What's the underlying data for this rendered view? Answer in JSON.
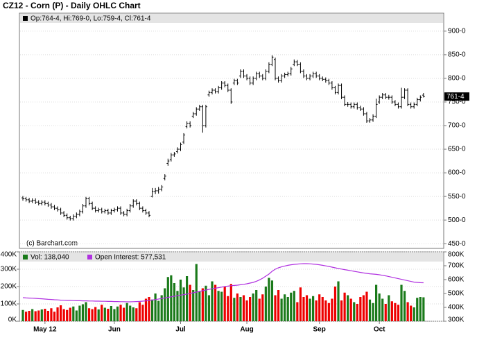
{
  "chart_data": [
    {
      "type": "ohlc",
      "title": "CZ12 - Corn (P) - Daily OHLC Chart",
      "ohlc_label": "Op:764-4, Hi:769-0, Lo:759-4, Cl:761-4",
      "copyright": "(c) Barchart.com",
      "last_label": "761-4",
      "color": "#000000",
      "grid": true,
      "ylim": [
        440,
        938
      ],
      "yticks": [
        {
          "value": 450,
          "label": "450-0"
        },
        {
          "value": 500,
          "label": "500-0"
        },
        {
          "value": 550,
          "label": "550-0"
        },
        {
          "value": 600,
          "label": "600-0"
        },
        {
          "value": 650,
          "label": "650-0"
        },
        {
          "value": 700,
          "label": "700-0"
        },
        {
          "value": 750,
          "label": "750-0"
        },
        {
          "value": 800,
          "label": "800-0"
        },
        {
          "value": 850,
          "label": "850-0"
        },
        {
          "value": 900,
          "label": "900-0"
        }
      ],
      "open": [
        547,
        545,
        543,
        540,
        542,
        538,
        535,
        538,
        535,
        532,
        528,
        525,
        522,
        515,
        510,
        505,
        503,
        508,
        512,
        518,
        530,
        545,
        535,
        525,
        520,
        522,
        518,
        520,
        515,
        520,
        522,
        525,
        515,
        512,
        520,
        530,
        540,
        535,
        525,
        520,
        515,
        550,
        560,
        562,
        565,
        588,
        620,
        628,
        638,
        645,
        650,
        665,
        698,
        705,
        720,
        725,
        735,
        740,
        700,
        765,
        770,
        775,
        772,
        780,
        790,
        785,
        775,
        790,
        795,
        805,
        815,
        805,
        800,
        790,
        800,
        810,
        805,
        800,
        815,
        830,
        840,
        800,
        795,
        805,
        808,
        810,
        830,
        835,
        830,
        815,
        805,
        800,
        805,
        810,
        805,
        800,
        798,
        795,
        790,
        780,
        770,
        785,
        760,
        745,
        745,
        740,
        745,
        738,
        735,
        725,
        710,
        712,
        720,
        750,
        760,
        765,
        760,
        760,
        750,
        745,
        740,
        760,
        775,
        745,
        740,
        745,
        755,
        764.5
      ],
      "high": [
        551,
        549,
        547,
        546,
        546,
        542,
        542,
        542,
        539,
        536,
        532,
        529,
        526,
        519,
        514,
        509,
        512,
        516,
        522,
        534,
        549,
        549,
        539,
        529,
        526,
        526,
        524,
        524,
        524,
        526,
        529,
        529,
        519,
        524,
        534,
        544,
        544,
        539,
        529,
        524,
        519,
        568,
        568,
        570,
        574,
        597,
        630,
        642,
        644,
        654,
        664,
        684,
        709,
        709,
        729,
        739,
        744,
        744,
        744,
        774,
        779,
        779,
        784,
        794,
        794,
        789,
        779,
        799,
        799,
        819,
        819,
        809,
        804,
        804,
        814,
        814,
        809,
        819,
        834,
        849,
        844,
        804,
        809,
        812,
        814,
        824,
        840,
        839,
        834,
        819,
        809,
        809,
        814,
        814,
        809,
        804,
        802,
        799,
        794,
        784,
        789,
        789,
        764,
        750,
        749,
        749,
        749,
        742,
        739,
        729,
        716,
        724,
        757,
        764,
        769,
        769,
        765,
        764,
        754,
        749,
        780,
        779,
        779,
        749,
        749,
        759,
        764,
        769
      ],
      "low": [
        541,
        539,
        536,
        536,
        534,
        531,
        531,
        531,
        528,
        524,
        521,
        518,
        511,
        506,
        501,
        499,
        499,
        504,
        508,
        514,
        526,
        531,
        521,
        516,
        516,
        514,
        514,
        511,
        511,
        516,
        518,
        511,
        508,
        508,
        516,
        526,
        531,
        521,
        516,
        511,
        506,
        548,
        555,
        556,
        561,
        584,
        615,
        624,
        634,
        641,
        646,
        661,
        694,
        696,
        716,
        721,
        731,
        685,
        696,
        761,
        766,
        768,
        768,
        776,
        781,
        771,
        746,
        786,
        786,
        801,
        801,
        796,
        786,
        786,
        796,
        801,
        796,
        796,
        811,
        826,
        796,
        791,
        791,
        801,
        804,
        806,
        826,
        826,
        811,
        801,
        796,
        796,
        801,
        801,
        796,
        794,
        791,
        786,
        776,
        766,
        766,
        756,
        741,
        740,
        736,
        736,
        734,
        731,
        721,
        706,
        706,
        708,
        716,
        746,
        756,
        756,
        755,
        746,
        741,
        736,
        736,
        756,
        741,
        736,
        736,
        741,
        751,
        759.5
      ],
      "close": [
        545,
        543,
        540,
        542,
        538,
        535,
        538,
        535,
        532,
        528,
        525,
        522,
        515,
        510,
        505,
        503,
        508,
        512,
        518,
        530,
        545,
        535,
        525,
        520,
        522,
        518,
        520,
        515,
        520,
        522,
        525,
        515,
        512,
        520,
        530,
        540,
        535,
        525,
        520,
        515,
        510,
        560,
        562,
        565,
        570,
        593,
        625,
        638,
        640,
        650,
        660,
        680,
        705,
        700,
        725,
        735,
        740,
        700,
        740,
        770,
        775,
        772,
        780,
        790,
        785,
        775,
        750,
        795,
        790,
        815,
        805,
        800,
        790,
        800,
        810,
        805,
        800,
        815,
        830,
        845,
        800,
        795,
        805,
        808,
        810,
        820,
        835,
        830,
        815,
        805,
        800,
        805,
        810,
        805,
        800,
        798,
        795,
        790,
        780,
        770,
        785,
        760,
        745,
        745,
        740,
        745,
        738,
        735,
        725,
        710,
        712,
        720,
        745,
        760,
        765,
        760,
        760,
        750,
        745,
        740,
        760,
        775,
        745,
        740,
        745,
        755,
        760,
        761.5
      ]
    },
    {
      "type": "bar",
      "categories": [
        null,
        null,
        null,
        null,
        null,
        null,
        null,
        "May 12",
        null,
        null,
        null,
        null,
        null,
        null,
        null,
        null,
        null,
        null,
        null,
        null,
        null,
        null,
        null,
        null,
        null,
        null,
        null,
        null,
        null,
        "Jun",
        null,
        null,
        null,
        null,
        null,
        null,
        null,
        null,
        null,
        null,
        null,
        null,
        null,
        null,
        null,
        null,
        null,
        null,
        null,
        null,
        "Jul",
        null,
        null,
        null,
        null,
        null,
        null,
        null,
        null,
        null,
        null,
        null,
        null,
        null,
        null,
        null,
        null,
        null,
        null,
        null,
        null,
        "Aug",
        null,
        null,
        null,
        null,
        null,
        null,
        null,
        null,
        null,
        null,
        null,
        null,
        null,
        null,
        null,
        null,
        null,
        null,
        null,
        null,
        null,
        null,
        "Sep",
        null,
        null,
        null,
        null,
        null,
        null,
        null,
        null,
        null,
        null,
        null,
        null,
        null,
        null,
        null,
        null,
        null,
        null,
        "Oct",
        null,
        null,
        null,
        null,
        null,
        null,
        null,
        null,
        null,
        null,
        null,
        null,
        null,
        null
      ],
      "ylim": [
        0,
        400000
      ],
      "yticks": [
        {
          "value": 0,
          "label": "0K"
        },
        {
          "value": 100000,
          "label": "100K"
        },
        {
          "value": 200000,
          "label": "200K"
        },
        {
          "value": 300000,
          "label": "300K"
        },
        {
          "value": 400000,
          "label": "400K"
        }
      ],
      "y2lim": [
        300000,
        800000
      ],
      "y2ticks": [
        {
          "value": 300000,
          "label": "300K"
        },
        {
          "value": 400000,
          "label": "400K"
        },
        {
          "value": 500000,
          "label": "500K"
        },
        {
          "value": 600000,
          "label": "600K"
        },
        {
          "value": 700000,
          "label": "700K"
        },
        {
          "value": 800000,
          "label": "800K"
        }
      ],
      "grid": true,
      "series": [
        {
          "name": "Vol: 138,040",
          "color": "#1a7a1a",
          "up_color": "#1a7a1a",
          "down_color": "#ee0000",
          "values": [
            65000,
            55000,
            60000,
            70000,
            58000,
            62000,
            68000,
            72000,
            60000,
            75000,
            55000,
            80000,
            92000,
            70000,
            65000,
            78000,
            85000,
            62000,
            90000,
            98000,
            110000,
            75000,
            70000,
            82000,
            68000,
            95000,
            78000,
            72000,
            88000,
            70000,
            85000,
            95000,
            78000,
            105000,
            90000,
            80000,
            75000,
            110000,
            95000,
            130000,
            140000,
            125000,
            160000,
            118000,
            150000,
            190000,
            255000,
            265000,
            220000,
            175000,
            240000,
            195000,
            260000,
            210000,
            180000,
            330000,
            170000,
            190000,
            205000,
            150000,
            230000,
            210000,
            175000,
            170000,
            200000,
            145000,
            215000,
            135000,
            160000,
            140000,
            150000,
            120000,
            140000,
            160000,
            180000,
            130000,
            155000,
            200000,
            250000,
            235000,
            150000,
            180000,
            130000,
            155000,
            140000,
            165000,
            175000,
            110000,
            195000,
            140000,
            150000,
            130000,
            145000,
            120000,
            155000,
            140000,
            120000,
            105000,
            130000,
            200000,
            230000,
            120000,
            165000,
            150000,
            130000,
            110000,
            100000,
            140000,
            150000,
            170000,
            125000,
            105000,
            210000,
            160000,
            130000,
            100000,
            150000,
            115000,
            105000,
            95000,
            210000,
            175000,
            110000,
            90000,
            80000,
            135000,
            140000,
            138040
          ]
        },
        {
          "name": "Open Interest: 577,531",
          "color": "#b030e0",
          "axis": "y2",
          "values": [
            470000,
            468000,
            467000,
            466000,
            465000,
            463000,
            462000,
            460000,
            458000,
            457000,
            455000,
            454000,
            452000,
            451000,
            450000,
            450000,
            449000,
            448000,
            448000,
            447000,
            447000,
            446000,
            446000,
            445000,
            445000,
            444000,
            444000,
            443000,
            443000,
            442000,
            442000,
            441000,
            441000,
            440000,
            440000,
            441000,
            442000,
            443000,
            445000,
            447000,
            450000,
            453000,
            456000,
            460000,
            464000,
            468000,
            472000,
            476000,
            480000,
            484000,
            488000,
            492000,
            496000,
            500000,
            505000,
            510000,
            515000,
            520000,
            525000,
            530000,
            534000,
            538000,
            542000,
            546000,
            550000,
            553000,
            556000,
            558000,
            560000,
            563000,
            566000,
            570000,
            575000,
            580000,
            588000,
            598000,
            610000,
            625000,
            640000,
            660000,
            675000,
            685000,
            692000,
            698000,
            703000,
            707000,
            710000,
            712000,
            714000,
            715000,
            715000,
            714000,
            712000,
            710000,
            707000,
            703000,
            699000,
            695000,
            690000,
            685000,
            680000,
            676000,
            672000,
            668000,
            664000,
            660000,
            656000,
            652000,
            648000,
            645000,
            642000,
            640000,
            638000,
            635000,
            631000,
            627000,
            622000,
            617000,
            612000,
            607000,
            602000,
            597000,
            592000,
            587000,
            582000,
            580000,
            578000,
            577531
          ]
        }
      ]
    }
  ]
}
